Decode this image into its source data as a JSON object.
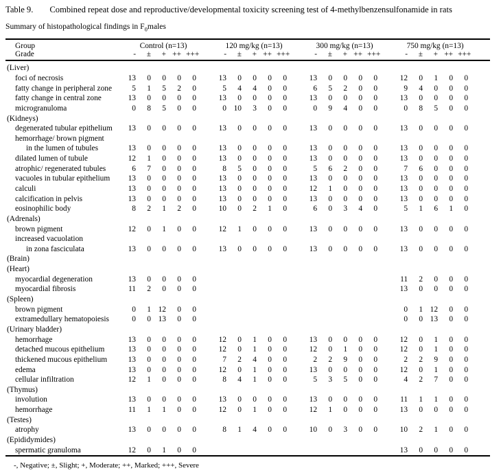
{
  "title": {
    "label": "Table 9.",
    "text": "Combined repeat dose and reproductive/developmental toxicity screening test of 4-methylbenzensulfonamide in rats"
  },
  "subtitle": {
    "prefix": "Summary of histopathological findings in F",
    "sub": "0",
    "suffix": "males"
  },
  "table": {
    "group_header_label": "Group",
    "grade_header_label": "Grade",
    "groups": [
      {
        "name": "Control (n=13)"
      },
      {
        "name": "120 mg/kg (n=13)"
      },
      {
        "name": "300 mg/kg (n=13)"
      },
      {
        "name": "750 mg/kg (n=13)"
      }
    ],
    "grades": [
      "-",
      "±",
      "+",
      "++",
      "+++"
    ],
    "rows": [
      {
        "type": "section",
        "label": "(Liver)"
      },
      {
        "type": "data",
        "indent": 1,
        "label": "foci of necrosis",
        "values": [
          [
            13,
            0,
            0,
            0,
            0
          ],
          [
            13,
            0,
            0,
            0,
            0
          ],
          [
            13,
            0,
            0,
            0,
            0
          ],
          [
            12,
            0,
            1,
            0,
            0
          ]
        ]
      },
      {
        "type": "data",
        "indent": 1,
        "label": "fatty change in peripheral zone",
        "values": [
          [
            5,
            1,
            5,
            2,
            0
          ],
          [
            5,
            4,
            4,
            0,
            0
          ],
          [
            6,
            5,
            2,
            0,
            0
          ],
          [
            9,
            4,
            0,
            0,
            0
          ]
        ]
      },
      {
        "type": "data",
        "indent": 1,
        "label": "fatty change in central zone",
        "values": [
          [
            13,
            0,
            0,
            0,
            0
          ],
          [
            13,
            0,
            0,
            0,
            0
          ],
          [
            13,
            0,
            0,
            0,
            0
          ],
          [
            13,
            0,
            0,
            0,
            0
          ]
        ]
      },
      {
        "type": "data",
        "indent": 1,
        "label": "microgranuloma",
        "values": [
          [
            0,
            8,
            5,
            0,
            0
          ],
          [
            0,
            10,
            3,
            0,
            0
          ],
          [
            0,
            9,
            4,
            0,
            0
          ],
          [
            0,
            8,
            5,
            0,
            0
          ]
        ]
      },
      {
        "type": "section",
        "label": "(Kidneys)"
      },
      {
        "type": "data",
        "indent": 1,
        "label": "degenerated tubular epithelium",
        "values": [
          [
            13,
            0,
            0,
            0,
            0
          ],
          [
            13,
            0,
            0,
            0,
            0
          ],
          [
            13,
            0,
            0,
            0,
            0
          ],
          [
            13,
            0,
            0,
            0,
            0
          ]
        ]
      },
      {
        "type": "data",
        "indent": 1,
        "label": "hemorrhage/ brown pigment",
        "values": [
          null,
          null,
          null,
          null
        ]
      },
      {
        "type": "data",
        "indent": 2,
        "label": "in the lumen of tubules",
        "values": [
          [
            13,
            0,
            0,
            0,
            0
          ],
          [
            13,
            0,
            0,
            0,
            0
          ],
          [
            13,
            0,
            0,
            0,
            0
          ],
          [
            13,
            0,
            0,
            0,
            0
          ]
        ]
      },
      {
        "type": "data",
        "indent": 1,
        "label": "dilated lumen of tubule",
        "values": [
          [
            12,
            1,
            0,
            0,
            0
          ],
          [
            13,
            0,
            0,
            0,
            0
          ],
          [
            13,
            0,
            0,
            0,
            0
          ],
          [
            13,
            0,
            0,
            0,
            0
          ]
        ]
      },
      {
        "type": "data",
        "indent": 1,
        "label": "atrophic/ regenerated tubules",
        "values": [
          [
            6,
            7,
            0,
            0,
            0
          ],
          [
            8,
            5,
            0,
            0,
            0
          ],
          [
            5,
            6,
            2,
            0,
            0
          ],
          [
            7,
            6,
            0,
            0,
            0
          ]
        ]
      },
      {
        "type": "data",
        "indent": 1,
        "label": "vacuoles in tubular epithelium",
        "values": [
          [
            13,
            0,
            0,
            0,
            0
          ],
          [
            13,
            0,
            0,
            0,
            0
          ],
          [
            13,
            0,
            0,
            0,
            0
          ],
          [
            13,
            0,
            0,
            0,
            0
          ]
        ]
      },
      {
        "type": "data",
        "indent": 1,
        "label": "calculi",
        "values": [
          [
            13,
            0,
            0,
            0,
            0
          ],
          [
            13,
            0,
            0,
            0,
            0
          ],
          [
            12,
            1,
            0,
            0,
            0
          ],
          [
            13,
            0,
            0,
            0,
            0
          ]
        ]
      },
      {
        "type": "data",
        "indent": 1,
        "label": "calcification in pelvis",
        "values": [
          [
            13,
            0,
            0,
            0,
            0
          ],
          [
            13,
            0,
            0,
            0,
            0
          ],
          [
            13,
            0,
            0,
            0,
            0
          ],
          [
            13,
            0,
            0,
            0,
            0
          ]
        ]
      },
      {
        "type": "data",
        "indent": 1,
        "label": "eosinophilic body",
        "values": [
          [
            8,
            2,
            1,
            2,
            0
          ],
          [
            10,
            0,
            2,
            1,
            0
          ],
          [
            6,
            0,
            3,
            4,
            0
          ],
          [
            5,
            1,
            6,
            1,
            0
          ]
        ]
      },
      {
        "type": "section",
        "label": "(Adrenals)"
      },
      {
        "type": "data",
        "indent": 1,
        "label": "brown pigment",
        "values": [
          [
            12,
            0,
            1,
            0,
            0
          ],
          [
            12,
            1,
            0,
            0,
            0
          ],
          [
            13,
            0,
            0,
            0,
            0
          ],
          [
            13,
            0,
            0,
            0,
            0
          ]
        ]
      },
      {
        "type": "data",
        "indent": 1,
        "label": "increased vacuolation",
        "values": [
          null,
          null,
          null,
          null
        ]
      },
      {
        "type": "data",
        "indent": 2,
        "label": "in zona fasciculata",
        "values": [
          [
            13,
            0,
            0,
            0,
            0
          ],
          [
            13,
            0,
            0,
            0,
            0
          ],
          [
            13,
            0,
            0,
            0,
            0
          ],
          [
            13,
            0,
            0,
            0,
            0
          ]
        ]
      },
      {
        "type": "section",
        "label": "(Brain)"
      },
      {
        "type": "section",
        "label": "(Heart)"
      },
      {
        "type": "data",
        "indent": 1,
        "label": "myocardial degeneration",
        "values": [
          [
            13,
            0,
            0,
            0,
            0
          ],
          null,
          null,
          [
            11,
            2,
            0,
            0,
            0
          ]
        ]
      },
      {
        "type": "data",
        "indent": 1,
        "label": "myocardial fibrosis",
        "values": [
          [
            11,
            2,
            0,
            0,
            0
          ],
          null,
          null,
          [
            13,
            0,
            0,
            0,
            0
          ]
        ]
      },
      {
        "type": "section",
        "label": "(Spleen)"
      },
      {
        "type": "data",
        "indent": 1,
        "label": "brown pigment",
        "values": [
          [
            0,
            1,
            12,
            0,
            0
          ],
          null,
          null,
          [
            0,
            1,
            12,
            0,
            0
          ]
        ]
      },
      {
        "type": "data",
        "indent": 1,
        "label": "extramedullary hematopoiesis",
        "values": [
          [
            0,
            0,
            13,
            0,
            0
          ],
          null,
          null,
          [
            0,
            0,
            13,
            0,
            0
          ]
        ]
      },
      {
        "type": "section",
        "label": "(Urinary bladder)"
      },
      {
        "type": "data",
        "indent": 1,
        "label": "hemorrhage",
        "values": [
          [
            13,
            0,
            0,
            0,
            0
          ],
          [
            12,
            0,
            1,
            0,
            0
          ],
          [
            13,
            0,
            0,
            0,
            0
          ],
          [
            12,
            0,
            1,
            0,
            0
          ]
        ]
      },
      {
        "type": "data",
        "indent": 1,
        "label": "detached mucous epithelium",
        "values": [
          [
            13,
            0,
            0,
            0,
            0
          ],
          [
            12,
            0,
            1,
            0,
            0
          ],
          [
            12,
            0,
            1,
            0,
            0
          ],
          [
            12,
            0,
            1,
            0,
            0
          ]
        ]
      },
      {
        "type": "data",
        "indent": 1,
        "label": "thickened mucous epithelium",
        "values": [
          [
            13,
            0,
            0,
            0,
            0
          ],
          [
            7,
            2,
            4,
            0,
            0
          ],
          [
            2,
            2,
            9,
            0,
            0
          ],
          [
            2,
            2,
            9,
            0,
            0
          ]
        ]
      },
      {
        "type": "data",
        "indent": 1,
        "label": "edema",
        "values": [
          [
            13,
            0,
            0,
            0,
            0
          ],
          [
            12,
            0,
            1,
            0,
            0
          ],
          [
            13,
            0,
            0,
            0,
            0
          ],
          [
            12,
            0,
            1,
            0,
            0
          ]
        ]
      },
      {
        "type": "data",
        "indent": 1,
        "label": "cellular infiltration",
        "values": [
          [
            12,
            1,
            0,
            0,
            0
          ],
          [
            8,
            4,
            1,
            0,
            0
          ],
          [
            5,
            3,
            5,
            0,
            0
          ],
          [
            4,
            2,
            7,
            0,
            0
          ]
        ]
      },
      {
        "type": "section",
        "label": "(Thymus)"
      },
      {
        "type": "data",
        "indent": 1,
        "label": "involution",
        "values": [
          [
            13,
            0,
            0,
            0,
            0
          ],
          [
            13,
            0,
            0,
            0,
            0
          ],
          [
            13,
            0,
            0,
            0,
            0
          ],
          [
            11,
            1,
            1,
            0,
            0
          ]
        ]
      },
      {
        "type": "data",
        "indent": 1,
        "label": "hemorrhage",
        "values": [
          [
            11,
            1,
            1,
            0,
            0
          ],
          [
            12,
            0,
            1,
            0,
            0
          ],
          [
            12,
            1,
            0,
            0,
            0
          ],
          [
            13,
            0,
            0,
            0,
            0
          ]
        ]
      },
      {
        "type": "section",
        "label": "(Testes)"
      },
      {
        "type": "data",
        "indent": 1,
        "label": "atrophy",
        "values": [
          [
            13,
            0,
            0,
            0,
            0
          ],
          [
            8,
            1,
            4,
            0,
            0
          ],
          [
            10,
            0,
            3,
            0,
            0
          ],
          [
            10,
            2,
            1,
            0,
            0
          ]
        ]
      },
      {
        "type": "section",
        "label": "(Epididymides)"
      },
      {
        "type": "data",
        "indent": 1,
        "label": "spermatic granuloma",
        "values": [
          [
            12,
            0,
            1,
            0,
            0
          ],
          null,
          null,
          [
            13,
            0,
            0,
            0,
            0
          ]
        ]
      }
    ],
    "footnote": "-, Negative; ±, Slight; +, Moderate; ++, Marked; +++, Severe"
  }
}
